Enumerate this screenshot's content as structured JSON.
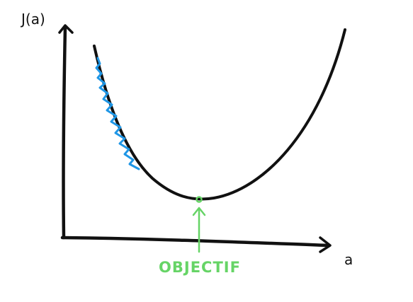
{
  "labels": {
    "y_axis": "J(a)",
    "x_axis": "a",
    "target": "OBJECTIF"
  },
  "colors": {
    "curve": "#111111",
    "axes": "#111111",
    "descent_path": "#1e96e6",
    "target": "#66d466"
  },
  "icons": {
    "target_marker": "circle-marker-icon",
    "up_arrow": "arrow-up-icon"
  }
}
